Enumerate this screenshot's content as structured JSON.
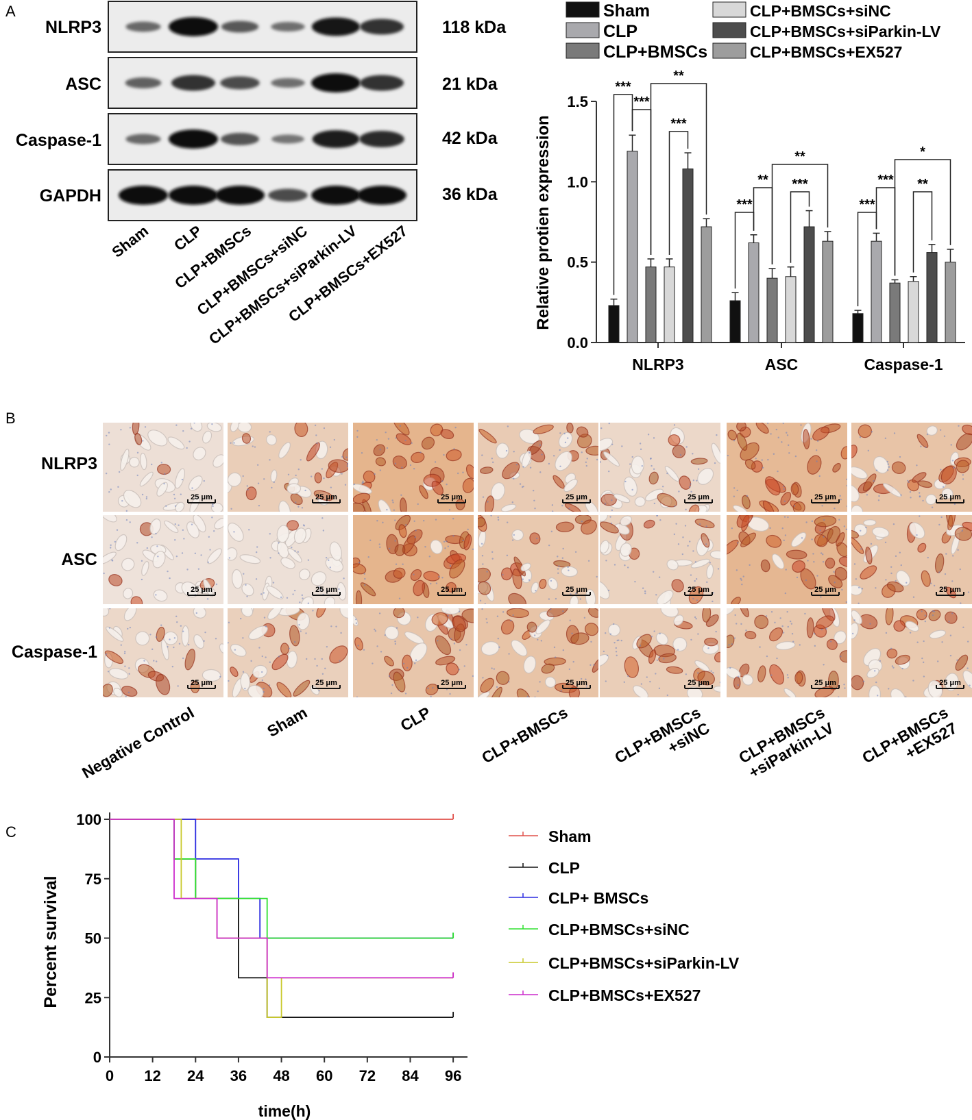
{
  "panel_labels": {
    "a": "A",
    "b": "B",
    "c": "C"
  },
  "western_blot": {
    "rows": [
      {
        "label": "NLRP3",
        "kda": "118 kDa",
        "intensities": [
          0.35,
          1.0,
          0.45,
          0.3,
          0.95,
          0.75
        ]
      },
      {
        "label": "ASC",
        "kda": "21 kDa",
        "intensities": [
          0.4,
          0.75,
          0.55,
          0.3,
          1.0,
          0.75
        ]
      },
      {
        "label": "Caspase-1",
        "kda": "42 kDa",
        "intensities": [
          0.35,
          1.0,
          0.5,
          0.25,
          0.9,
          0.8
        ]
      },
      {
        "label": "GAPDH",
        "kda": "36 kDa",
        "intensities": [
          1.0,
          1.0,
          1.0,
          0.55,
          1.0,
          1.0
        ]
      }
    ],
    "lanes": [
      "Sham",
      "CLP",
      "CLP+BMSCs",
      "CLP+BMSCs+siNC",
      "CLP+BMSCs+siParkin-LV",
      "CLP+BMSCs+EX527"
    ]
  },
  "bar_chart_legend": [
    {
      "label": "Sham",
      "color": "#111111"
    },
    {
      "label": "CLP",
      "color": "#a9a9ad"
    },
    {
      "label": "CLP+BMSCs",
      "color": "#7a7a7a"
    },
    {
      "label": "CLP+BMSCs+siNC",
      "color": "#d8d8d8"
    },
    {
      "label": "CLP+BMSCs+siParkin-LV",
      "color": "#4d4d4d"
    },
    {
      "label": "CLP+BMSCs+EX527",
      "color": "#9d9d9d"
    }
  ],
  "ihc": {
    "rows": [
      "NLRP3",
      "ASC",
      "Caspase-1"
    ],
    "columns": [
      "Negative Control",
      "Sham",
      "CLP",
      "CLP+BMSCs",
      "CLP+BMSCs\n+siNC",
      "CLP+BMSCs\n+siParkin-LV",
      "CLP+BMSCs\n+EX527"
    ],
    "scale_bar": "25 μm",
    "stain_level": [
      [
        0.1,
        0.45,
        0.95,
        0.5,
        0.25,
        0.85,
        0.65
      ],
      [
        0.05,
        0.08,
        0.95,
        0.55,
        0.35,
        0.9,
        0.6
      ],
      [
        0.25,
        0.4,
        0.6,
        0.65,
        0.45,
        0.55,
        0.55
      ]
    ]
  },
  "survival_legend": [
    {
      "label": "Sham",
      "color": "#e0504a"
    },
    {
      "label": "CLP",
      "color": "#111111"
    },
    {
      "label": "CLP+ BMSCs",
      "color": "#2a2ae0"
    },
    {
      "label": "CLP+BMSCs+siNC",
      "color": "#2ee02e"
    },
    {
      "label": "CLP+BMSCs+siParkin-LV",
      "color": "#c8c82a"
    },
    {
      "label": "CLP+BMSCs+EX527",
      "color": "#cc2acc"
    }
  ],
  "chart_data": [
    {
      "type": "bar",
      "categories": [
        "NLRP3",
        "ASC",
        "Caspase-1"
      ],
      "ylabel": "Relative protien expression",
      "ylim": [
        0,
        1.5
      ],
      "yticks": [
        "0.0",
        "0.5",
        "1.0",
        "1.5"
      ],
      "legend_placement": "top",
      "series": [
        {
          "name": "Sham",
          "values": [
            0.23,
            0.26,
            0.18
          ],
          "errors": [
            0.04,
            0.05,
            0.02
          ]
        },
        {
          "name": "CLP",
          "values": [
            1.19,
            0.62,
            0.63
          ],
          "errors": [
            0.1,
            0.05,
            0.05
          ]
        },
        {
          "name": "CLP+BMSCs",
          "values": [
            0.47,
            0.4,
            0.37
          ],
          "errors": [
            0.05,
            0.06,
            0.02
          ]
        },
        {
          "name": "CLP+BMSCs+siNC",
          "values": [
            0.47,
            0.41,
            0.38
          ],
          "errors": [
            0.05,
            0.06,
            0.03
          ]
        },
        {
          "name": "CLP+BMSCs+siParkin-LV",
          "values": [
            1.08,
            0.72,
            0.56
          ],
          "errors": [
            0.1,
            0.1,
            0.05
          ]
        },
        {
          "name": "CLP+BMSCs+EX527",
          "values": [
            0.72,
            0.63,
            0.5
          ],
          "errors": [
            0.05,
            0.06,
            0.08
          ]
        }
      ],
      "significance": [
        {
          "category": 0,
          "from": 0,
          "to": 1,
          "label": "***"
        },
        {
          "category": 0,
          "from": 1,
          "to": 2,
          "label": "***"
        },
        {
          "category": 0,
          "from": 2,
          "to": 5,
          "label": "**"
        },
        {
          "category": 0,
          "from": 3,
          "to": 4,
          "label": "***"
        },
        {
          "category": 1,
          "from": 0,
          "to": 1,
          "label": "***"
        },
        {
          "category": 1,
          "from": 1,
          "to": 2,
          "label": "**"
        },
        {
          "category": 1,
          "from": 2,
          "to": 5,
          "label": "**"
        },
        {
          "category": 1,
          "from": 3,
          "to": 4,
          "label": "***"
        },
        {
          "category": 2,
          "from": 0,
          "to": 1,
          "label": "***"
        },
        {
          "category": 2,
          "from": 1,
          "to": 2,
          "label": "***"
        },
        {
          "category": 2,
          "from": 2,
          "to": 5,
          "label": "*"
        },
        {
          "category": 2,
          "from": 3,
          "to": 4,
          "label": "**"
        }
      ]
    },
    {
      "type": "line",
      "xlabel": "time(h)",
      "ylabel": "Percent survival",
      "xlim": [
        0,
        100
      ],
      "ylim": [
        0,
        100
      ],
      "xticks": [
        0,
        12,
        24,
        36,
        48,
        60,
        72,
        84,
        96
      ],
      "yticks": [
        0,
        25,
        50,
        75,
        100
      ],
      "legend_placement": "right",
      "series": [
        {
          "name": "Sham",
          "steps": [
            [
              0,
              100
            ],
            [
              96,
              100
            ]
          ]
        },
        {
          "name": "CLP",
          "steps": [
            [
              0,
              100
            ],
            [
              18,
              100
            ],
            [
              18,
              83.3
            ],
            [
              24,
              83.3
            ],
            [
              24,
              66.7
            ],
            [
              36,
              66.7
            ],
            [
              36,
              33.3
            ],
            [
              44,
              33.3
            ],
            [
              44,
              16.7
            ],
            [
              96,
              16.7
            ]
          ]
        },
        {
          "name": "CLP+ BMSCs",
          "steps": [
            [
              0,
              100
            ],
            [
              24,
              100
            ],
            [
              24,
              83.3
            ],
            [
              36,
              83.3
            ],
            [
              36,
              66.7
            ],
            [
              42,
              66.7
            ],
            [
              42,
              50
            ],
            [
              96,
              50
            ]
          ]
        },
        {
          "name": "CLP+BMSCs+siNC",
          "steps": [
            [
              0,
              100
            ],
            [
              18,
              100
            ],
            [
              18,
              83.3
            ],
            [
              24,
              83.3
            ],
            [
              24,
              66.7
            ],
            [
              44,
              66.7
            ],
            [
              44,
              50
            ],
            [
              96,
              50
            ]
          ]
        },
        {
          "name": "CLP+BMSCs+siParkin-LV",
          "steps": [
            [
              0,
              100
            ],
            [
              20,
              100
            ],
            [
              20,
              66.7
            ],
            [
              30,
              66.7
            ],
            [
              30,
              50
            ],
            [
              44,
              50
            ],
            [
              44,
              16.7
            ],
            [
              48,
              16.7
            ],
            [
              48,
              33.3
            ],
            [
              96,
              33.3
            ]
          ]
        },
        {
          "name": "CLP+BMSCs+EX527",
          "steps": [
            [
              0,
              100
            ],
            [
              18,
              100
            ],
            [
              18,
              66.7
            ],
            [
              30,
              66.7
            ],
            [
              30,
              50
            ],
            [
              44,
              50
            ],
            [
              44,
              33.3
            ],
            [
              96,
              33.3
            ]
          ]
        }
      ]
    }
  ]
}
